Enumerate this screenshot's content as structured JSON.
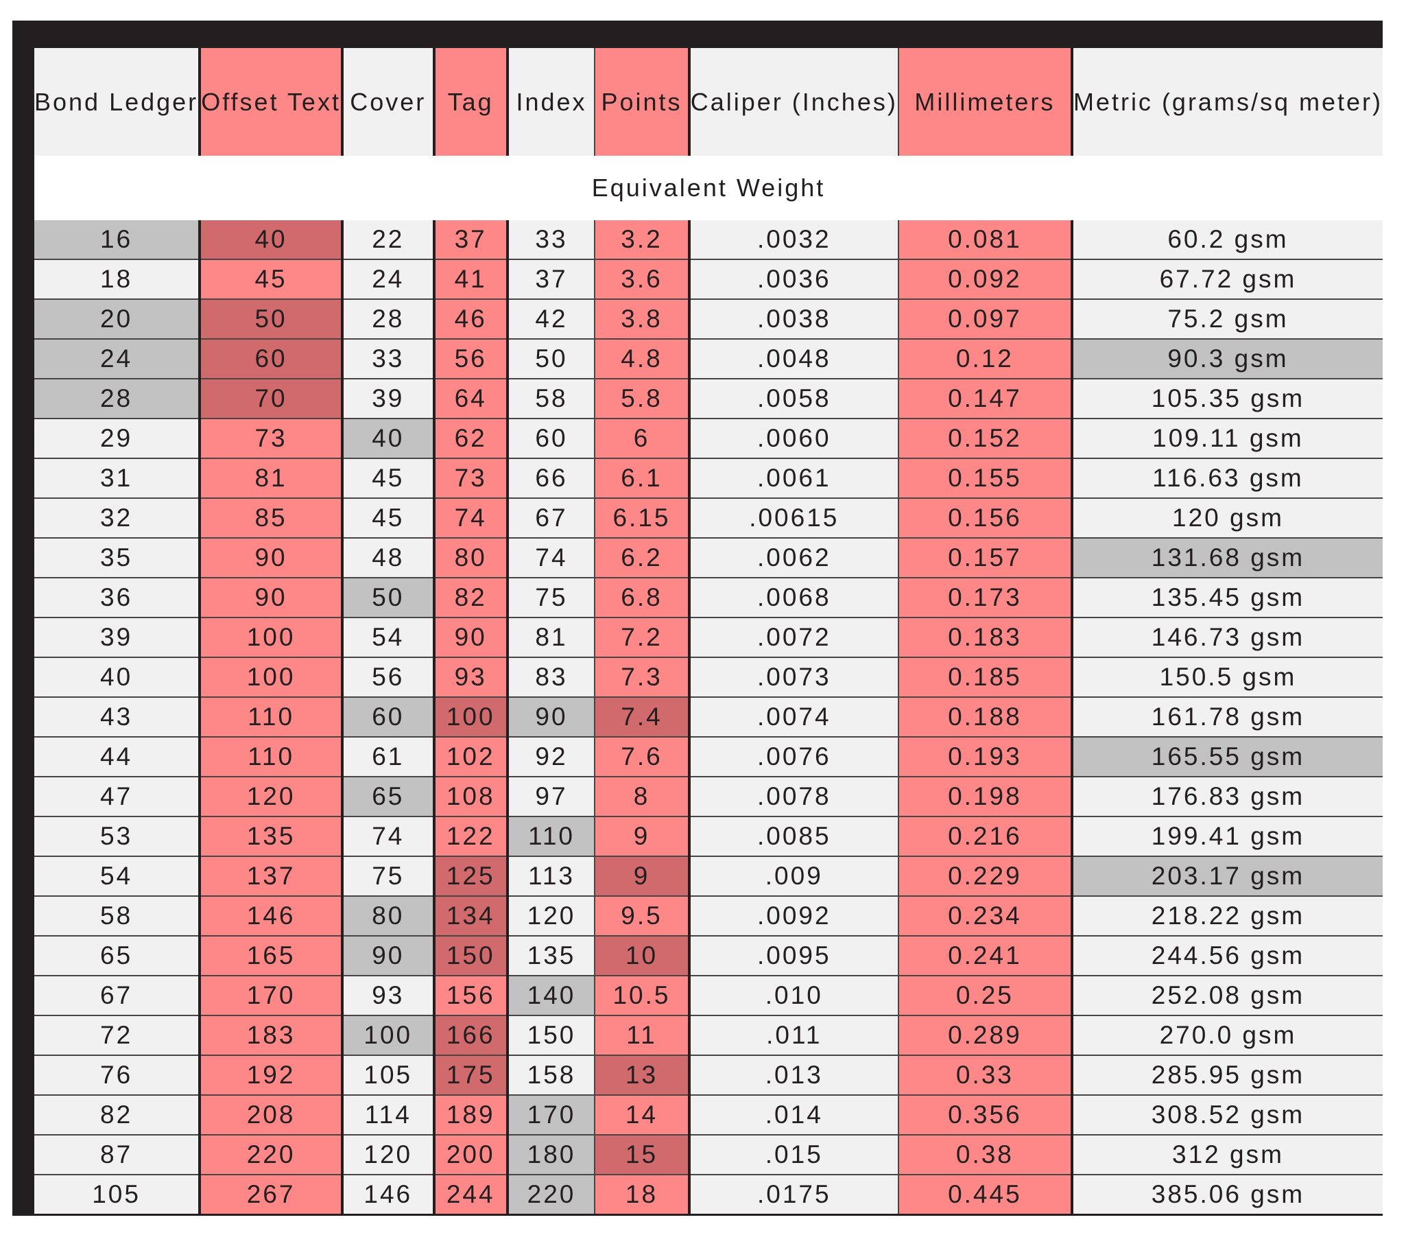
{
  "columns": [
    "Bond Ledger",
    "Offset Text",
    "Cover",
    "Tag",
    "Index",
    "Points",
    "Caliper (Inches)",
    "Millimeters",
    "Metric (grams/sq meter)"
  ],
  "subheader": "Equivalent Weight",
  "colors": {
    "frame": "#231f20",
    "light_column": "#f2f1f1",
    "red_column": "#fe8888",
    "gray_highlight": "#c3c2c2",
    "red_highlight": "#d16a6c"
  },
  "rows": [
    {
      "cells": [
        "16",
        "40",
        "22",
        "37",
        "33",
        "3.2",
        ".0032",
        "0.081",
        "60.2 gsm"
      ],
      "highlight": [
        0,
        1
      ]
    },
    {
      "cells": [
        "18",
        "45",
        "24",
        "41",
        "37",
        "3.6",
        ".0036",
        "0.092",
        "67.72 gsm"
      ],
      "highlight": []
    },
    {
      "cells": [
        "20",
        "50",
        "28",
        "46",
        "42",
        "3.8",
        ".0038",
        "0.097",
        "75.2 gsm"
      ],
      "highlight": [
        0,
        1
      ]
    },
    {
      "cells": [
        "24",
        "60",
        "33",
        "56",
        "50",
        "4.8",
        ".0048",
        "0.12",
        "90.3 gsm"
      ],
      "highlight": [
        0,
        1,
        8
      ]
    },
    {
      "cells": [
        "28",
        "70",
        "39",
        "64",
        "58",
        "5.8",
        ".0058",
        "0.147",
        "105.35 gsm"
      ],
      "highlight": [
        0,
        1
      ]
    },
    {
      "cells": [
        "29",
        "73",
        "40",
        "62",
        "60",
        "6",
        ".0060",
        "0.152",
        "109.11 gsm"
      ],
      "highlight": [
        2
      ]
    },
    {
      "cells": [
        "31",
        "81",
        "45",
        "73",
        "66",
        "6.1",
        ".0061",
        "0.155",
        "116.63 gsm"
      ],
      "highlight": []
    },
    {
      "cells": [
        "32",
        "85",
        "45",
        "74",
        "67",
        "6.15",
        ".00615",
        "0.156",
        "120 gsm"
      ],
      "highlight": []
    },
    {
      "cells": [
        "35",
        "90",
        "48",
        "80",
        "74",
        "6.2",
        ".0062",
        "0.157",
        "131.68 gsm"
      ],
      "highlight": [
        8
      ]
    },
    {
      "cells": [
        "36",
        "90",
        "50",
        "82",
        "75",
        "6.8",
        ".0068",
        "0.173",
        "135.45 gsm"
      ],
      "highlight": [
        2
      ]
    },
    {
      "cells": [
        "39",
        "100",
        "54",
        "90",
        "81",
        "7.2",
        ".0072",
        "0.183",
        "146.73 gsm"
      ],
      "highlight": []
    },
    {
      "cells": [
        "40",
        "100",
        "56",
        "93",
        "83",
        "7.3",
        ".0073",
        "0.185",
        "150.5 gsm"
      ],
      "highlight": []
    },
    {
      "cells": [
        "43",
        "110",
        "60",
        "100",
        "90",
        "7.4",
        ".0074",
        "0.188",
        "161.78 gsm"
      ],
      "highlight": [
        2,
        3,
        4,
        5
      ]
    },
    {
      "cells": [
        "44",
        "110",
        "61",
        "102",
        "92",
        "7.6",
        ".0076",
        "0.193",
        "165.55 gsm"
      ],
      "highlight": [
        8
      ]
    },
    {
      "cells": [
        "47",
        "120",
        "65",
        "108",
        "97",
        "8",
        ".0078",
        "0.198",
        "176.83 gsm"
      ],
      "highlight": [
        2
      ]
    },
    {
      "cells": [
        "53",
        "135",
        "74",
        "122",
        "110",
        "9",
        ".0085",
        "0.216",
        "199.41 gsm"
      ],
      "highlight": [
        4
      ]
    },
    {
      "cells": [
        "54",
        "137",
        "75",
        "125",
        "113",
        "9",
        ".009",
        "0.229",
        "203.17 gsm"
      ],
      "highlight": [
        3,
        5,
        8
      ]
    },
    {
      "cells": [
        "58",
        "146",
        "80",
        "134",
        "120",
        "9.5",
        ".0092",
        "0.234",
        "218.22 gsm"
      ],
      "highlight": [
        2,
        3
      ]
    },
    {
      "cells": [
        "65",
        "165",
        "90",
        "150",
        "135",
        "10",
        ".0095",
        "0.241",
        "244.56 gsm"
      ],
      "highlight": [
        2,
        3,
        5
      ]
    },
    {
      "cells": [
        "67",
        "170",
        "93",
        "156",
        "140",
        "10.5",
        ".010",
        "0.25",
        "252.08 gsm"
      ],
      "highlight": [
        4
      ]
    },
    {
      "cells": [
        "72",
        "183",
        "100",
        "166",
        "150",
        "11",
        ".011",
        "0.289",
        "270.0 gsm"
      ],
      "highlight": [
        2,
        3
      ]
    },
    {
      "cells": [
        "76",
        "192",
        "105",
        "175",
        "158",
        "13",
        ".013",
        "0.33",
        "285.95 gsm"
      ],
      "highlight": [
        3,
        5
      ]
    },
    {
      "cells": [
        "82",
        "208",
        "114",
        "189",
        "170",
        "14",
        ".014",
        "0.356",
        "308.52 gsm"
      ],
      "highlight": [
        4
      ]
    },
    {
      "cells": [
        "87",
        "220",
        "120",
        "200",
        "180",
        "15",
        ".015",
        "0.38",
        "312 gsm"
      ],
      "highlight": [
        4,
        5
      ]
    },
    {
      "cells": [
        "105",
        "267",
        "146",
        "244",
        "220",
        "18",
        ".0175",
        "0.445",
        "385.06 gsm"
      ],
      "highlight": [
        4
      ]
    }
  ]
}
